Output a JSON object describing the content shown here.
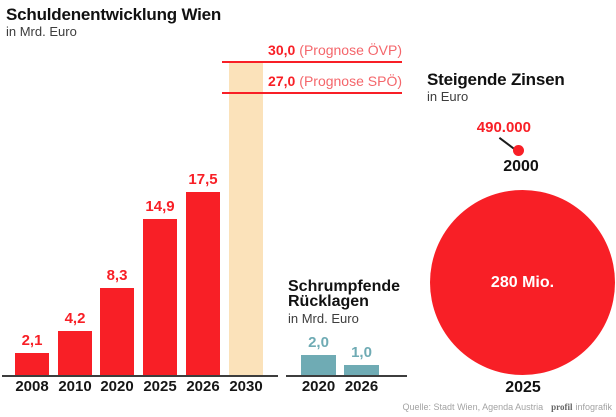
{
  "source": {
    "prefix": "Quelle: Stadt Wien, Agenda Austria",
    "brand": "profil",
    "brand_suffix": "infografik"
  },
  "colors": {
    "red": "#f81f26",
    "projection_beige": "#fbe2ba",
    "teal": "#6fabb4",
    "prognosis_text_light": "#f4666b",
    "axis": "#3d3d3d"
  },
  "chart_data": [
    {
      "id": "debt",
      "type": "bar",
      "title": "Schuldenentwicklung Wien",
      "subtitle": "in Mrd. Euro",
      "ylabel": "Mrd. Euro",
      "categories": [
        "2008",
        "2010",
        "2020",
        "2025",
        "2026",
        "2030"
      ],
      "values": [
        2.1,
        4.2,
        8.3,
        14.9,
        17.5,
        30.0
      ],
      "value_labels": [
        "2,1",
        "4,2",
        "8,3",
        "14,9",
        "17,5",
        ""
      ],
      "bar_roles": [
        "actual",
        "actual",
        "actual",
        "actual",
        "actual",
        "projection"
      ],
      "ylim": [
        0,
        30
      ],
      "annotations": [
        {
          "value": 30.0,
          "label_value": "30,0",
          "label_text": "(Prognose ÖVP)"
        },
        {
          "value": 27.0,
          "label_value": "27,0",
          "label_text": "(Prognose SPÖ)"
        }
      ]
    },
    {
      "id": "reserves",
      "type": "bar",
      "title": "Schrumpfende Rücklagen",
      "title_lines": [
        "Schrumpfende",
        "Rücklagen"
      ],
      "subtitle": "in Mrd. Euro",
      "categories": [
        "2020",
        "2026"
      ],
      "values": [
        2.0,
        1.0
      ],
      "value_labels": [
        "2,0",
        "1,0"
      ],
      "ylim": [
        0,
        2
      ]
    },
    {
      "id": "interest",
      "type": "bubble",
      "title": "Steigende Zinsen",
      "subtitle": "in Euro",
      "points": [
        {
          "category": "2000",
          "value": 490000,
          "label": "490.000"
        },
        {
          "category": "2025",
          "value": 280000000,
          "label": "280 Mio."
        }
      ]
    }
  ]
}
